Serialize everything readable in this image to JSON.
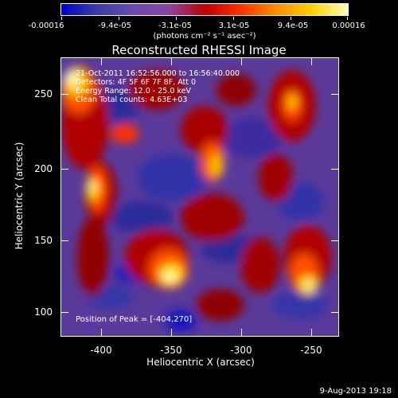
{
  "colorbar": {
    "labels": [
      "-0.00016",
      "-9.4e-05",
      "-3.1e-05",
      "3.1e-05",
      "9.4e-05",
      "0.00016"
    ],
    "units": "(photons cm⁻² s⁻¹ asec⁻²)",
    "gradient": [
      "#0000cc",
      "#3c3ca8",
      "#6a4ab0",
      "#8a44a0",
      "#c00000",
      "#ff3000",
      "#ff8c00",
      "#ffd000",
      "#ffffc0"
    ]
  },
  "title": "Reconstructed RHESSI Image",
  "info": {
    "line1": "21-Oct-2011 16:52:56.000 to 16:56:40.000",
    "line2": "Detectors: 4F 5F 6F 7F 8F, Att 0",
    "line3": "Energy Range: 12.0 - 25.0 keV",
    "line4": "Clean     Total counts: 4.63E+03"
  },
  "peak_label": "Position of Peak = [-404,270]",
  "axes": {
    "xtitle": "Heliocentric X (arcsec)",
    "ytitle": "Heliocentric Y (arcsec)",
    "xticks": [
      "-400",
      "-350",
      "-300",
      "-250"
    ],
    "yticks": [
      "250",
      "200",
      "150",
      "100"
    ]
  },
  "timestamp": "9-Aug-2013 19:18"
}
